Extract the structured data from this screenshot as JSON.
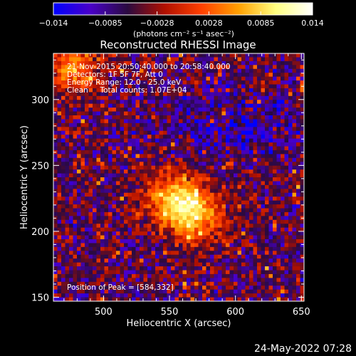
{
  "chart_data": {
    "type": "heatmap",
    "title": "Reconstructed RHESSI Image",
    "xlabel": "Heliocentric X (arcsec)",
    "ylabel": "Heliocentric Y (arcsec)",
    "xlim": [
      462,
      652
    ],
    "ylim": [
      147,
      335
    ],
    "xticks": [
      500,
      550,
      600,
      650
    ],
    "yticks": [
      150,
      200,
      250,
      300
    ],
    "colorbar": {
      "min": -0.014,
      "max": 0.014,
      "ticks": [
        "-0.014",
        "-0.0085",
        "-0.0028",
        "0.0028",
        "0.0085",
        "0.014"
      ],
      "unit_label": "(photons cm⁻² s⁻¹ asec⁻²)",
      "colors": [
        "#0000ff",
        "#4a00c8",
        "#2a0a40",
        "#b01000",
        "#ff4000",
        "#ffa000",
        "#ffff80",
        "#ffffff"
      ]
    },
    "annotations": [
      "21-Nov-2015 20:50:40.000 to 20:58:40.000",
      "Detectors: 1F 5F 7F, Att 0",
      "Energy Range: 12.0 - 25.0 keV",
      "Clean     Total counts: 1.07E+04"
    ],
    "peak_label": "Position of Peak = [584,332]",
    "peak_position": [
      584,
      332
    ],
    "grid": false
  },
  "footer": {
    "timestamp": "24-May-2022 07:28"
  }
}
